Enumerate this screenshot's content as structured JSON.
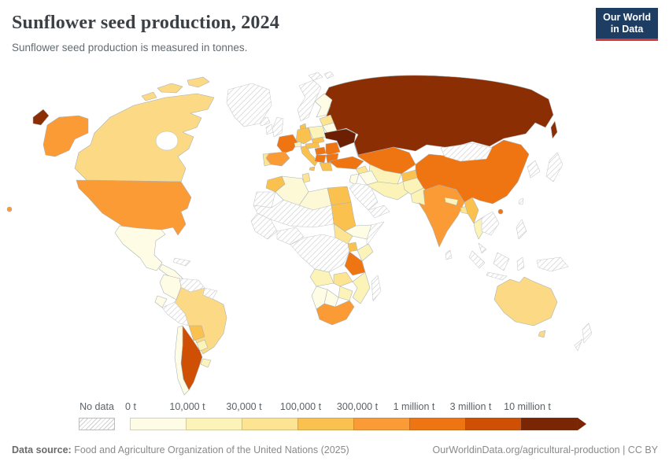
{
  "header": {
    "title": "Sunflower seed production, 2024",
    "subtitle": "Sunflower seed production is measured in tonnes.",
    "logo": {
      "line1": "Our World",
      "line2": "in Data",
      "bg": "#1d3d63",
      "accent": "#d3393d"
    }
  },
  "legend": {
    "no_data_label": "No data",
    "ticks": [
      "0 t",
      "10,000 t",
      "30,000 t",
      "100,000 t",
      "300,000 t",
      "1 million t",
      "3 million t",
      "10 million t"
    ]
  },
  "footer": {
    "source_label": "Data source:",
    "source_text": " Food and Agriculture Organization of the United Nations (2025)",
    "right_text": "OurWorldinData.org/agricultural-production | CC BY"
  },
  "chart_data": {
    "type": "choropleth_map",
    "title": "Sunflower seed production, 2024",
    "subtitle": "Sunflower seed production is measured in tonnes.",
    "unit": "tonnes",
    "year": 2024,
    "legend_position": "bottom",
    "legend_bins": [
      {
        "label": "No data",
        "color": "hatch"
      },
      {
        "label": "0 t – 10,000 t",
        "color": "#fefce5"
      },
      {
        "label": "10,000 t – 30,000 t",
        "color": "#fcf3b9"
      },
      {
        "label": "30,000 t – 100,000 t",
        "color": "#fce492"
      },
      {
        "label": "100,000 t – 300,000 t",
        "color": "#fbc14f"
      },
      {
        "label": "300,000 t – 1 million t",
        "color": "#fb9b35"
      },
      {
        "label": "1 – 3 million t",
        "color": "#ef7412"
      },
      {
        "label": "3 – 10 million t",
        "color": "#cf5004"
      },
      {
        "label": "more than 10 million t",
        "color": "#7a2604"
      }
    ],
    "countries": [
      {
        "id": "russia",
        "name": "Russia",
        "bin": "more than 10 million t",
        "color": "#8b2e03"
      },
      {
        "id": "ukraine",
        "name": "Ukraine",
        "bin": "more than 10 million t",
        "color": "#6d1f04"
      },
      {
        "id": "argentina",
        "name": "Argentina",
        "bin": "3 – 10 million t",
        "color": "#cf5004"
      },
      {
        "id": "moldova",
        "name": "Moldova",
        "bin": "3 – 10 million t",
        "color": "#cf5004"
      },
      {
        "id": "china",
        "name": "China",
        "bin": "1 – 3 million t",
        "color": "#ef7412"
      },
      {
        "id": "kazakhstan",
        "name": "Kazakhstan",
        "bin": "1 – 3 million t",
        "color": "#ef7412"
      },
      {
        "id": "turkey",
        "name": "Turkey",
        "bin": "1 – 3 million t",
        "color": "#ef7412"
      },
      {
        "id": "france",
        "name": "France",
        "bin": "1 – 3 million t",
        "color": "#ef7412"
      },
      {
        "id": "romania",
        "name": "Romania",
        "bin": "1 – 3 million t",
        "color": "#ef7412"
      },
      {
        "id": "hungary",
        "name": "Hungary",
        "bin": "1 – 3 million t",
        "color": "#ef7412"
      },
      {
        "id": "bulgaria",
        "name": "Bulgaria",
        "bin": "1 – 3 million t",
        "color": "#ef7412"
      },
      {
        "id": "serbia",
        "name": "Serbia",
        "bin": "1 – 3 million t",
        "color": "#ef7412"
      },
      {
        "id": "tanzania",
        "name": "Tanzania",
        "bin": "1 – 3 million t",
        "color": "#ef7412"
      },
      {
        "id": "hainan",
        "name": "China (Hainan)",
        "bin": "1 – 3 million t",
        "color": "#ef7412"
      },
      {
        "id": "usa",
        "name": "United States",
        "bin": "300,000 t – 1 million t",
        "color": "#fb9b35"
      },
      {
        "id": "spain",
        "name": "Spain",
        "bin": "300,000 t – 1 million t",
        "color": "#fb9b35"
      },
      {
        "id": "india",
        "name": "India",
        "bin": "300,000 t – 1 million t",
        "color": "#fb9b35"
      },
      {
        "id": "south-africa",
        "name": "South Africa",
        "bin": "300,000 t – 1 million t",
        "color": "#fb9b35"
      },
      {
        "id": "germany",
        "name": "Germany",
        "bin": "100,000 t – 300,000 t",
        "color": "#fbc14f"
      },
      {
        "id": "italy",
        "name": "Italy",
        "bin": "100,000 t – 300,000 t",
        "color": "#fbc14f"
      },
      {
        "id": "czechia",
        "name": "Czechia",
        "bin": "100,000 t – 300,000 t",
        "color": "#fbc14f"
      },
      {
        "id": "austria",
        "name": "Austria",
        "bin": "100,000 t – 300,000 t",
        "color": "#fbc14f"
      },
      {
        "id": "greece",
        "name": "Greece",
        "bin": "100,000 t – 300,000 t",
        "color": "#fbc14f"
      },
      {
        "id": "denmark",
        "name": "Denmark",
        "bin": "100,000 t – 300,000 t",
        "color": "#fbc14f"
      },
      {
        "id": "morocco",
        "name": "Morocco",
        "bin": "100,000 t – 300,000 t",
        "color": "#fbc14f"
      },
      {
        "id": "egypt",
        "name": "Egypt",
        "bin": "100,000 t – 300,000 t",
        "color": "#fbc14f"
      },
      {
        "id": "sudan",
        "name": "Sudan",
        "bin": "100,000 t – 300,000 t",
        "color": "#fbc14f"
      },
      {
        "id": "uganda",
        "name": "Uganda",
        "bin": "100,000 t – 300,000 t",
        "color": "#fbc14f"
      },
      {
        "id": "myanmar",
        "name": "Myanmar",
        "bin": "100,000 t – 300,000 t",
        "color": "#fbc14f"
      },
      {
        "id": "bolivia",
        "name": "Bolivia",
        "bin": "100,000 t – 300,000 t",
        "color": "#fbc14f"
      },
      {
        "id": "kyrgyzstan",
        "name": "Kyrgyzstan",
        "bin": "100,000 t – 300,000 t",
        "color": "#fbc14f"
      },
      {
        "id": "canada",
        "name": "Canada",
        "bin": "30,000 t – 100,000 t",
        "color": "#fbd985"
      },
      {
        "id": "brazil",
        "name": "Brazil",
        "bin": "30,000 t – 100,000 t",
        "color": "#fbd985"
      },
      {
        "id": "australia",
        "name": "Australia",
        "bin": "30,000 t – 100,000 t",
        "color": "#fbd985"
      },
      {
        "id": "tasmania",
        "name": "Australia (Tasmania)",
        "bin": "30,000 t – 100,000 t",
        "color": "#fbd985"
      },
      {
        "id": "zambia",
        "name": "Zambia",
        "bin": "30,000 t – 100,000 t",
        "color": "#fce492"
      },
      {
        "id": "portugal",
        "name": "Portugal",
        "bin": "30,000 t – 100,000 t",
        "color": "#fce492"
      },
      {
        "id": "baltics",
        "name": "Baltic states",
        "bin": "30,000 t – 100,000 t",
        "color": "#fce492"
      },
      {
        "id": "syria",
        "name": "Syria",
        "bin": "30,000 t – 100,000 t",
        "color": "#fce492"
      },
      {
        "id": "south-sudan",
        "name": "South Sudan",
        "bin": "30,000 t – 100,000 t",
        "color": "#fce492"
      },
      {
        "id": "tunisia",
        "name": "Tunisia",
        "bin": "30,000 t – 100,000 t",
        "color": "#fce492"
      },
      {
        "id": "bangladesh",
        "name": "Bangladesh",
        "bin": "30,000 t – 100,000 t",
        "color": "#fce492"
      },
      {
        "id": "poland",
        "name": "Poland",
        "bin": "10,000 t – 30,000 t",
        "color": "#fcf3b9"
      },
      {
        "id": "thailand",
        "name": "Thailand",
        "bin": "10,000 t – 30,000 t",
        "color": "#fcf3b9"
      },
      {
        "id": "iran",
        "name": "Iran",
        "bin": "10,000 t – 30,000 t",
        "color": "#fcf3b9"
      },
      {
        "id": "pakistan",
        "name": "Pakistan",
        "bin": "10,000 t – 30,000 t",
        "color": "#fcf3b9"
      },
      {
        "id": "afghanistan",
        "name": "Afghanistan",
        "bin": "10,000 t – 30,000 t",
        "color": "#fcf3b9"
      },
      {
        "id": "central-asia",
        "name": "Uzbekistan / Turkmenistan",
        "bin": "10,000 t – 30,000 t",
        "color": "#fcf3b9"
      },
      {
        "id": "angola",
        "name": "Angola",
        "bin": "10,000 t – 30,000 t",
        "color": "#fcf3b9"
      },
      {
        "id": "mozambique",
        "name": "Mozambique",
        "bin": "10,000 t – 30,000 t",
        "color": "#fcf3b9"
      },
      {
        "id": "zimbabwe",
        "name": "Zimbabwe",
        "bin": "10,000 t – 30,000 t",
        "color": "#fcf3b9"
      },
      {
        "id": "kenya",
        "name": "Kenya",
        "bin": "10,000 t – 30,000 t",
        "color": "#fcf3b9"
      },
      {
        "id": "nepal",
        "name": "Nepal",
        "bin": "10,000 t – 30,000 t",
        "color": "#fcf3b9"
      },
      {
        "id": "paraguay",
        "name": "Paraguay",
        "bin": "10,000 t – 30,000 t",
        "color": "#fcf3b9"
      },
      {
        "id": "uruguay",
        "name": "Uruguay",
        "bin": "10,000 t – 30,000 t",
        "color": "#fcf3b9"
      },
      {
        "id": "switzerland",
        "name": "Switzerland",
        "bin": "10,000 t – 30,000 t",
        "color": "#fcf3b9"
      },
      {
        "id": "mexico",
        "name": "Mexico",
        "bin": "0 t – 10,000 t",
        "color": "#fefce5"
      },
      {
        "id": "chile",
        "name": "Chile",
        "bin": "0 t – 10,000 t",
        "color": "#fefce5"
      },
      {
        "id": "colombia",
        "name": "Colombia",
        "bin": "0 t – 10,000 t",
        "color": "#fefce5"
      },
      {
        "id": "ecuador",
        "name": "Ecuador",
        "bin": "0 t – 10,000 t",
        "color": "#fefce5"
      },
      {
        "id": "central-america",
        "name": "Central America",
        "bin": "0 t – 10,000 t",
        "color": "#fefce5"
      },
      {
        "id": "algeria",
        "name": "Algeria",
        "bin": "0 t – 10,000 t",
        "color": "#fdf8d5"
      },
      {
        "id": "libya",
        "name": "Libya",
        "bin": "0 t – 10,000 t",
        "color": "#fdf8d5"
      },
      {
        "id": "ethiopia",
        "name": "Ethiopia",
        "bin": "0 t – 10,000 t",
        "color": "#fefce5"
      },
      {
        "id": "namibia",
        "name": "Namibia",
        "bin": "0 t – 10,000 t",
        "color": "#fefce5"
      },
      {
        "id": "botswana",
        "name": "Botswana",
        "bin": "0 t – 10,000 t",
        "color": "#fefce5"
      },
      {
        "id": "belarus",
        "name": "Belarus",
        "bin": "0 t – 10,000 t",
        "color": "#fefce5"
      },
      {
        "id": "finland",
        "name": "Finland",
        "bin": "0 t – 10,000 t",
        "color": "#fefce5"
      },
      {
        "id": "iraq",
        "name": "Iraq",
        "bin": "0 t – 10,000 t",
        "color": "#fefce5"
      },
      {
        "id": "israel-jordan",
        "name": "Israel / Jordan",
        "bin": "0 t – 10,000 t",
        "color": "#fefce5"
      },
      {
        "id": "greenland",
        "name": "Greenland",
        "bin": "No data",
        "color": "hatch"
      },
      {
        "id": "iceland",
        "name": "Iceland",
        "bin": "No data",
        "color": "hatch"
      },
      {
        "id": "svalbard",
        "name": "Svalbard",
        "bin": "No data",
        "color": "hatch"
      },
      {
        "id": "norway-sweden",
        "name": "Norway / Sweden",
        "bin": "No data",
        "color": "hatch"
      },
      {
        "id": "uk",
        "name": "United Kingdom",
        "bin": "No data",
        "color": "hatch"
      },
      {
        "id": "ireland",
        "name": "Ireland",
        "bin": "No data",
        "color": "hatch"
      },
      {
        "id": "mongolia",
        "name": "Mongolia",
        "bin": "No data",
        "color": "hatch"
      },
      {
        "id": "saudi-arabia",
        "name": "Saudi Arabia",
        "bin": "No data",
        "color": "hatch"
      },
      {
        "id": "yemen-oman",
        "name": "Yemen / Oman",
        "bin": "No data",
        "color": "hatch"
      },
      {
        "id": "japan",
        "name": "Japan",
        "bin": "No data",
        "color": "hatch"
      },
      {
        "id": "korea",
        "name": "Korea",
        "bin": "No data",
        "color": "hatch"
      },
      {
        "id": "indochina",
        "name": "Vietnam / Laos / Cambodia",
        "bin": "No data",
        "color": "hatch"
      },
      {
        "id": "malaysia",
        "name": "Malaysia",
        "bin": "No data",
        "color": "hatch"
      },
      {
        "id": "sumatra",
        "name": "Indonesia (Sumatra)",
        "bin": "No data",
        "color": "hatch"
      },
      {
        "id": "borneo",
        "name": "Indonesia (Borneo)",
        "bin": "No data",
        "color": "hatch"
      },
      {
        "id": "java",
        "name": "Indonesia (Java)",
        "bin": "No data",
        "color": "hatch"
      },
      {
        "id": "sulawesi",
        "name": "Indonesia (Sulawesi)",
        "bin": "No data",
        "color": "hatch"
      },
      {
        "id": "philippines",
        "name": "Philippines",
        "bin": "No data",
        "color": "hatch"
      },
      {
        "id": "new-guinea",
        "name": "Papua New Guinea",
        "bin": "No data",
        "color": "hatch"
      },
      {
        "id": "nz-north",
        "name": "New Zealand (North Island)",
        "bin": "No data",
        "color": "hatch"
      },
      {
        "id": "nz-south",
        "name": "New Zealand (South Island)",
        "bin": "No data",
        "color": "hatch"
      },
      {
        "id": "madagascar",
        "name": "Madagascar",
        "bin": "No data",
        "color": "hatch"
      },
      {
        "id": "congo-basin",
        "name": "Central Africa (DRC region)",
        "bin": "No data",
        "color": "hatch"
      },
      {
        "id": "nigeria",
        "name": "Nigeria / Gulf of Guinea",
        "bin": "No data",
        "color": "hatch"
      },
      {
        "id": "west-africa",
        "name": "West Africa",
        "bin": "No data",
        "color": "hatch"
      },
      {
        "id": "sahel",
        "name": "Sahara / Sahel",
        "bin": "No data",
        "color": "hatch"
      },
      {
        "id": "mauritania",
        "name": "Mauritania / W. Sahara",
        "bin": "No data",
        "color": "hatch"
      },
      {
        "id": "somalia",
        "name": "Somalia",
        "bin": "No data",
        "color": "hatch"
      },
      {
        "id": "venezuela",
        "name": "Venezuela",
        "bin": "No data",
        "color": "hatch"
      },
      {
        "id": "peru",
        "name": "Peru",
        "bin": "No data",
        "color": "hatch"
      },
      {
        "id": "guyanas",
        "name": "Guyana / Suriname",
        "bin": "No data",
        "color": "hatch"
      },
      {
        "id": "cuba",
        "name": "Cuba",
        "bin": "No data",
        "color": "hatch"
      },
      {
        "id": "sri-lanka",
        "name": "Sri Lanka",
        "bin": "No data",
        "color": "hatch"
      },
      {
        "id": "taiwan",
        "name": "Taiwan",
        "bin": "No data",
        "color": "hatch"
      }
    ]
  }
}
